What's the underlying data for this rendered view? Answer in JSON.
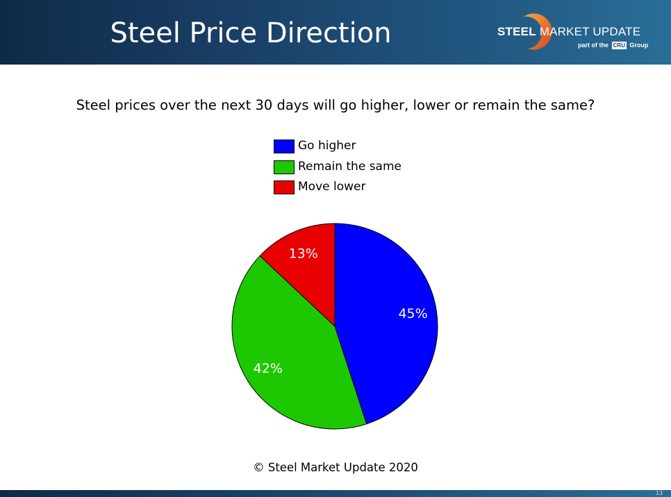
{
  "header": {
    "title": "Steel Price Direction",
    "logo": {
      "brand_bold": "STEEL",
      "brand_rest": "MARKET UPDATE",
      "sub_prefix": "part of the",
      "sub_box": "CRU",
      "sub_suffix": "Group"
    }
  },
  "footer": {
    "copyright": "© Steel Market Update 2020",
    "page_number": "13"
  },
  "colors": {
    "header_dark": "#0f2a48",
    "header_light": "#2a6e98",
    "go_higher": "#0000ff",
    "remain_same": "#1ec800",
    "move_lower": "#e80000"
  },
  "chart_data": {
    "type": "pie",
    "title": "Steel prices over the next 30 days will go higher, lower or remain the same?",
    "legend_position": "top",
    "categories": [
      "Go higher",
      "Remain the same",
      "Move lower"
    ],
    "values": [
      45,
      42,
      13
    ],
    "value_labels": [
      "45%",
      "42%",
      "13%"
    ],
    "colors": [
      "#0000ff",
      "#1ec800",
      "#e80000"
    ]
  }
}
